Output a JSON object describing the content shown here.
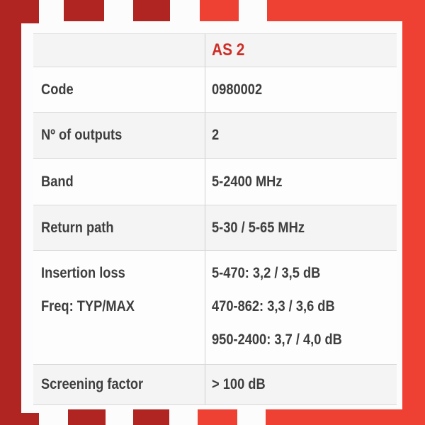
{
  "colors": {
    "dark_red": "#b02421",
    "bright_red": "#ef4034",
    "accent_text_red": "#cd2d26",
    "text": "#3e3e3e",
    "row_bg": "#fdfdfd",
    "row_alt_bg": "#f4f4f4",
    "panel_bg": "#fcfcfc"
  },
  "header": {
    "product_name": "AS 2"
  },
  "table": {
    "rows": [
      {
        "label": "Code",
        "value": "0980002"
      },
      {
        "label": "Nº of outputs",
        "value": "2"
      },
      {
        "label": "Band",
        "value": "5-2400 MHz"
      },
      {
        "label": "Return path",
        "value": "5-30 / 5-65 MHz"
      },
      {
        "label_lines": [
          "Insertion loss",
          "Freq: TYP/MAX"
        ],
        "value_lines": [
          "5-470: 3,2 / 3,5 dB",
          "470-862: 3,3 / 3,6 dB",
          "950-2400: 3,7 / 4,0 dB"
        ]
      },
      {
        "label": "Screening factor",
        "value": "> 100 dB"
      }
    ]
  }
}
